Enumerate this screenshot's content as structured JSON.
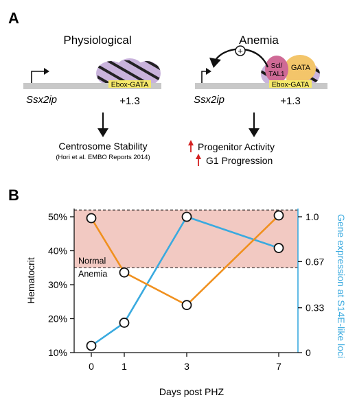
{
  "panel_a": {
    "label": "A",
    "left": {
      "title": "Physiological",
      "gene": "Ssx2ip",
      "motif": "Ebox-GATA",
      "position": "+1.3",
      "outcome": "Centrosome Stability",
      "citation": "(Hori et al. EMBO Reports 2014)"
    },
    "right": {
      "title": "Anemia",
      "gene": "Ssx2ip",
      "motif": "Ebox-GATA",
      "position": "+1.3",
      "tf1_line1": "Scl/",
      "tf1_line2": "TAL1",
      "tf2": "GATA",
      "plus_symbol": "+",
      "outcome1": "Progenitor Activity",
      "outcome2": "G1 Progression"
    },
    "colors": {
      "nucleosome": "#c9b3dc",
      "scl": "#cf6a96",
      "gata": "#f3c56a",
      "motif_box": "#f5e86a",
      "up_arrow": "#d42020",
      "dna": "#c8c8c8"
    }
  },
  "panel_b": {
    "label": "B",
    "normal_label": "Normal",
    "anemia_label": "Anemia",
    "band_color": "#f2c9c2",
    "hematocrit_color": "#f0901e",
    "gene_color": "#3aaadf"
  },
  "chart_data": {
    "type": "line",
    "xlabel": "Days post PHZ",
    "ylabel": "Hematocrit",
    "y2label": "Gene expression at S14E-like loci",
    "x_ticks": [
      "0",
      "1",
      "3",
      "7"
    ],
    "y_ticks": [
      "10%",
      "20%",
      "30%",
      "40%",
      "50%"
    ],
    "y2_ticks": [
      "0",
      "0.33",
      "0.67",
      "1.0"
    ],
    "ylim": [
      10,
      50
    ],
    "y2lim": [
      0,
      1
    ],
    "normal_range": [
      35,
      52
    ],
    "series": [
      {
        "name": "Hematocrit",
        "axis": "left",
        "x": [
          0,
          1,
          3,
          7
        ],
        "values": [
          49.6,
          33.6,
          24.0,
          50.4
        ]
      },
      {
        "name": "Gene expression",
        "axis": "right",
        "x": [
          0,
          1,
          3,
          7
        ],
        "values": [
          0.05,
          0.22,
          1.0,
          0.77
        ]
      }
    ]
  }
}
